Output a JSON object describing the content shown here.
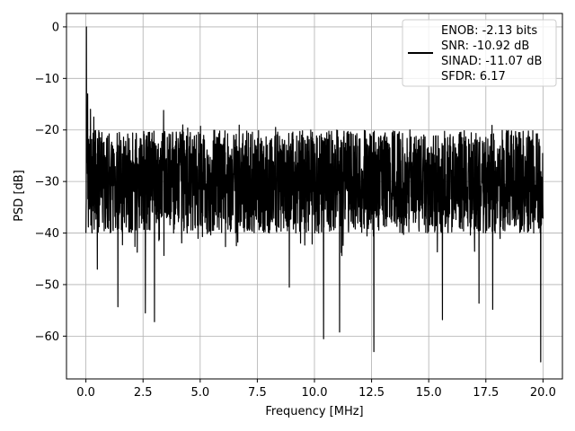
{
  "chart_data": {
    "type": "line",
    "title": "",
    "xlabel": "Frequency [MHz]",
    "ylabel": "PSD [dB]",
    "xlim": [
      -0.85,
      20.85
    ],
    "ylim": [
      -68.3,
      2.6
    ],
    "xticks": [
      0.0,
      2.5,
      5.0,
      7.5,
      10.0,
      12.5,
      15.0,
      17.5,
      20.0
    ],
    "xtick_labels": [
      "0.0",
      "2.5",
      "5.0",
      "7.5",
      "10.0",
      "12.5",
      "15.0",
      "17.5",
      "20.0"
    ],
    "yticks": [
      0,
      -10,
      -20,
      -30,
      -40,
      -50,
      -60
    ],
    "ytick_labels": [
      "0",
      "−10",
      "−20",
      "−30",
      "−40",
      "−50",
      "−60"
    ],
    "grid": true,
    "legend_placement": "upper-right",
    "legend_lines": [
      "ENOB: -2.13 bits",
      "SNR: -10.92 dB",
      "SINAD: -11.07 dB",
      "SFDR: 6.17"
    ],
    "series_color": "#000000",
    "series": [
      {
        "name": "ENOB: -2.13 bits\nSNR: -10.92 dB\nSINAD: -11.07 dB\nSFDR: 6.17",
        "noise_floor": {
          "x_range": [
            0.0,
            20.0
          ],
          "upper_envelope_dB": -20,
          "mean_dB": -30,
          "lower_envelope_dB": -40
        },
        "peaks": [
          {
            "x": 0.02,
            "y": 0.0
          },
          {
            "x": 0.08,
            "y": -13.0
          },
          {
            "x": 0.2,
            "y": -16.0
          },
          {
            "x": 0.35,
            "y": -17.5
          },
          {
            "x": 3.4,
            "y": -16.2
          },
          {
            "x": 8.3,
            "y": -19.5
          }
        ],
        "dips": [
          {
            "x": 0.5,
            "y": -47.0
          },
          {
            "x": 1.4,
            "y": -54.3
          },
          {
            "x": 2.6,
            "y": -55.5
          },
          {
            "x": 3.0,
            "y": -57.2
          },
          {
            "x": 8.9,
            "y": -50.5
          },
          {
            "x": 10.4,
            "y": -60.5
          },
          {
            "x": 11.1,
            "y": -59.2
          },
          {
            "x": 12.6,
            "y": -63.0
          },
          {
            "x": 15.6,
            "y": -56.8
          },
          {
            "x": 17.2,
            "y": -53.6
          },
          {
            "x": 17.8,
            "y": -54.8
          },
          {
            "x": 19.9,
            "y": -65.0
          }
        ]
      }
    ]
  }
}
